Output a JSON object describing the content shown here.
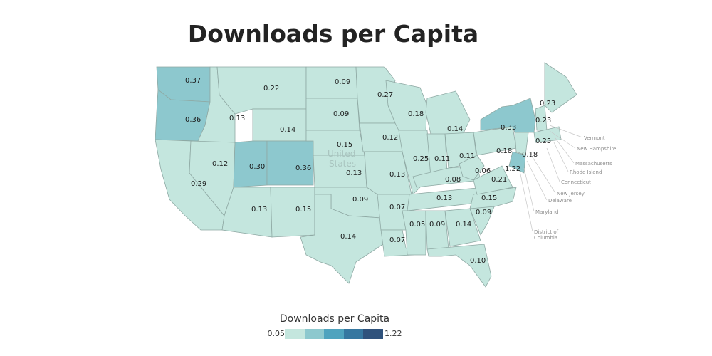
{
  "title": "Downloads per Capita",
  "map": {
    "country_label": [
      "United",
      "States"
    ],
    "scale": {
      "min": 0.05,
      "max": 1.22
    },
    "colors": [
      "#c4e6de",
      "#8dc8ce",
      "#4fa3be",
      "#3677a0",
      "#2f527c"
    ],
    "states": [
      {
        "id": "WA",
        "value": "0.37"
      },
      {
        "id": "OR",
        "value": "0.36"
      },
      {
        "id": "CA",
        "value": "0.29"
      },
      {
        "id": "ID",
        "value": "0.13"
      },
      {
        "id": "NV",
        "value": "0.12"
      },
      {
        "id": "MT",
        "value": "0.22"
      },
      {
        "id": "WY",
        "value": "0.14"
      },
      {
        "id": "UT",
        "value": "0.30"
      },
      {
        "id": "CO",
        "value": "0.36"
      },
      {
        "id": "AZ",
        "value": "0.13"
      },
      {
        "id": "NM",
        "value": "0.15"
      },
      {
        "id": "ND",
        "value": "0.09"
      },
      {
        "id": "SD",
        "value": "0.09"
      },
      {
        "id": "NE",
        "value": "0.15"
      },
      {
        "id": "KS",
        "value": "0.13"
      },
      {
        "id": "OK",
        "value": "0.09"
      },
      {
        "id": "TX",
        "value": "0.14"
      },
      {
        "id": "MN",
        "value": "0.27"
      },
      {
        "id": "IA",
        "value": "0.12"
      },
      {
        "id": "MO",
        "value": "0.13"
      },
      {
        "id": "AR",
        "value": "0.07"
      },
      {
        "id": "LA",
        "value": "0.07"
      },
      {
        "id": "WI",
        "value": "0.18"
      },
      {
        "id": "IL",
        "value": "0.25"
      },
      {
        "id": "MI",
        "value": "0.14"
      },
      {
        "id": "IN",
        "value": "0.11"
      },
      {
        "id": "OH",
        "value": "0.11"
      },
      {
        "id": "KY",
        "value": "0.08"
      },
      {
        "id": "TN",
        "value": "0.13"
      },
      {
        "id": "MS",
        "value": "0.05"
      },
      {
        "id": "AL",
        "value": "0.09"
      },
      {
        "id": "GA",
        "value": "0.14"
      },
      {
        "id": "FL",
        "value": "0.10"
      },
      {
        "id": "SC",
        "value": "0.09"
      },
      {
        "id": "NC",
        "value": "0.15"
      },
      {
        "id": "VA",
        "value": "0.21"
      },
      {
        "id": "WV",
        "value": "0.06"
      },
      {
        "id": "PA",
        "value": "0.18"
      },
      {
        "id": "NY",
        "value": "0.33"
      },
      {
        "id": "NJ",
        "value": "0.18"
      },
      {
        "id": "MD",
        "value": "1.22"
      },
      {
        "id": "VT",
        "value": "0.23"
      },
      {
        "id": "ME",
        "value": "0.23"
      },
      {
        "id": "MA",
        "value": "0.25"
      }
    ],
    "callouts": [
      "Vermont",
      "New Hampshire",
      "Massachusetts",
      "Rhode Island",
      "Connecticut",
      "New Jersey",
      "Delaware",
      "Maryland",
      "District of",
      "Columbia"
    ]
  },
  "legend": {
    "title": "Downloads per Capita",
    "min_label": "0.05",
    "max_label": "1.22"
  }
}
